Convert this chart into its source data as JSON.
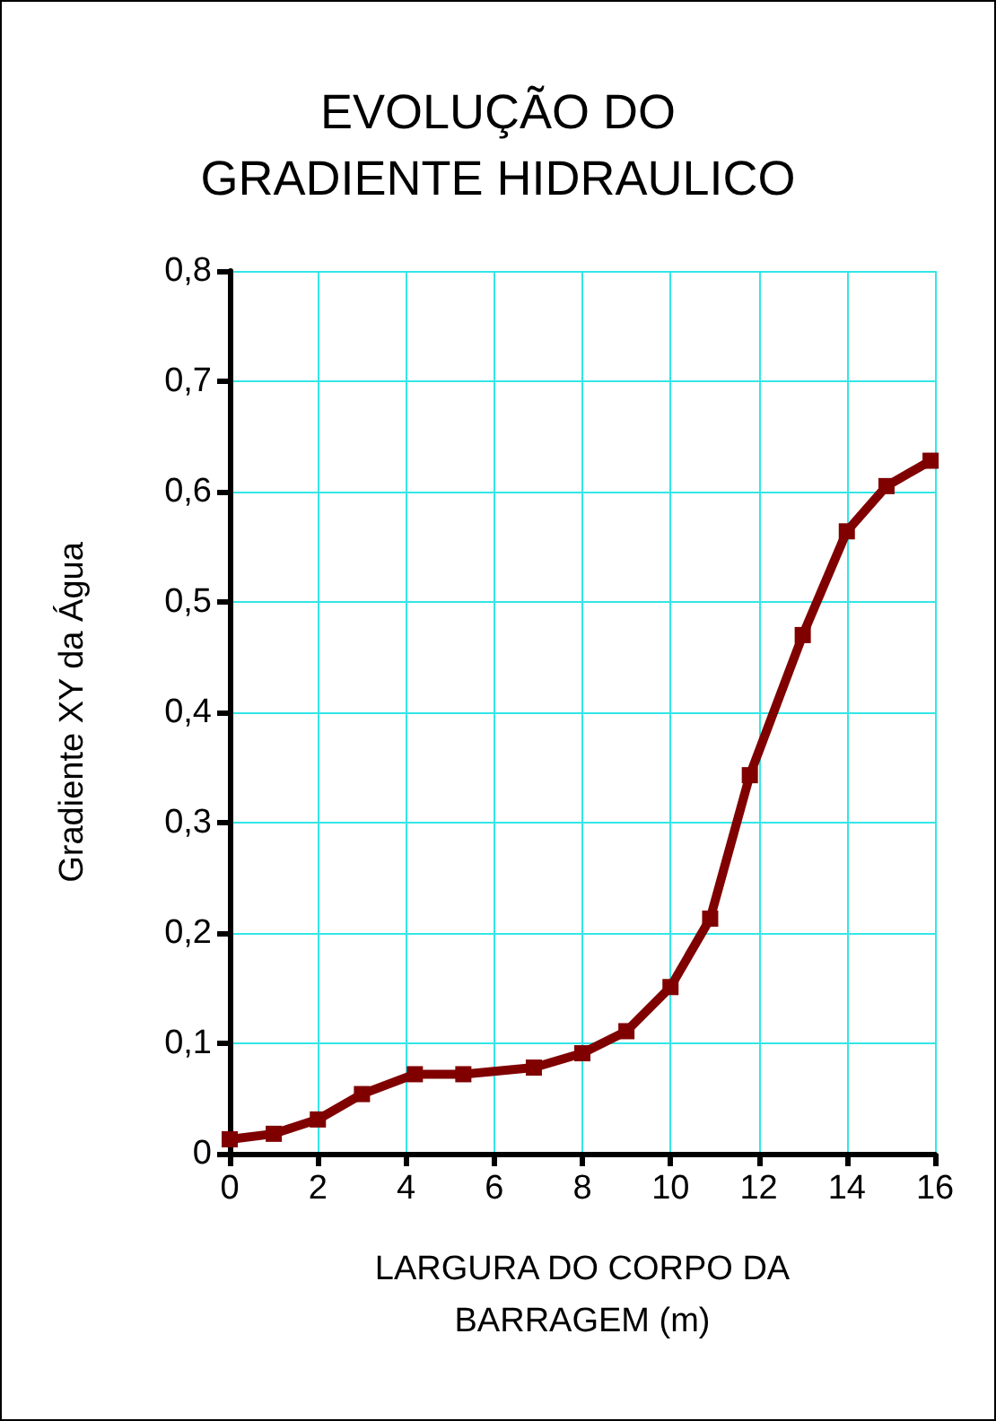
{
  "chart_data": {
    "type": "line",
    "title": "EVOLUÇÃO DO\nGRADIENTE HIDRAULICO",
    "xlabel": "LARGURA DO CORPO DA\nBARRAGEM (m)",
    "ylabel": "Gradiente XY da Água",
    "x": [
      0,
      1,
      2,
      3,
      4.2,
      5.3,
      6.9,
      8,
      9,
      10,
      10.9,
      11.8,
      13,
      14,
      14.9,
      15.9
    ],
    "series": [
      {
        "color": "#800000",
        "values": [
          0.013,
          0.018,
          0.031,
          0.054,
          0.072,
          0.072,
          0.078,
          0.091,
          0.111,
          0.151,
          0.213,
          0.343,
          0.47,
          0.564,
          0.605,
          0.628
        ]
      }
    ],
    "xlim": [
      0,
      16
    ],
    "xticks": [
      0,
      2,
      4,
      6,
      8,
      10,
      12,
      14,
      16
    ],
    "ylim": [
      0,
      0.8
    ],
    "yticks": [
      0,
      {
        "value": 0.1,
        "label": "0,1"
      },
      {
        "value": 0.2,
        "label": "0,2"
      },
      {
        "value": 0.3,
        "label": "0,3"
      },
      {
        "value": 0.4,
        "label": "0,4"
      },
      {
        "value": 0.5,
        "label": "0,5"
      },
      {
        "value": 0.6,
        "label": "0,6"
      },
      {
        "value": 0.7,
        "label": "0,7"
      },
      {
        "value": 0.8,
        "label": "0,8"
      }
    ],
    "grid": true,
    "marker": "square",
    "line_style": "solid"
  }
}
